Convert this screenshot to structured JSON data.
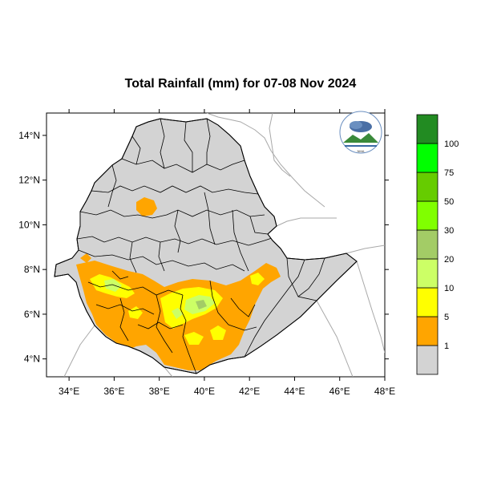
{
  "title": "Total Rainfall (mm) for 07-08 Nov 2024",
  "map": {
    "lon_ticks": [
      "34°E",
      "36°E",
      "38°E",
      "40°E",
      "42°E",
      "44°E",
      "46°E",
      "48°E"
    ],
    "lat_ticks": [
      "4°N",
      "6°N",
      "8°N",
      "10°N",
      "12°N",
      "14°N"
    ],
    "lon_range": [
      33,
      48
    ],
    "lat_range": [
      3.2,
      15
    ],
    "land_color": "#d3d3d3",
    "border_color": "#000000"
  },
  "legend": {
    "thresholds": [
      "1",
      "5",
      "10",
      "20",
      "30",
      "50",
      "75",
      "100"
    ],
    "colors": [
      "#d3d3d3",
      "#ffa500",
      "#ffff00",
      "#ccff66",
      "#a3cc66",
      "#80ff00",
      "#66cc00",
      "#00ff00",
      "#228b22"
    ]
  },
  "logo": {
    "icon_name": "agency-logo-icon",
    "text": "NMA"
  }
}
